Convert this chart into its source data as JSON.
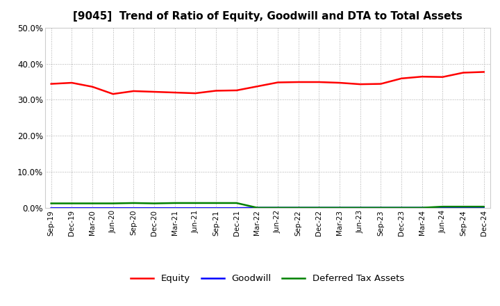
{
  "title": "[9045]  Trend of Ratio of Equity, Goodwill and DTA to Total Assets",
  "x_labels": [
    "Sep-19",
    "Dec-19",
    "Mar-20",
    "Jun-20",
    "Sep-20",
    "Dec-20",
    "Mar-21",
    "Jun-21",
    "Sep-21",
    "Dec-21",
    "Mar-22",
    "Jun-22",
    "Sep-22",
    "Dec-22",
    "Mar-23",
    "Jun-23",
    "Sep-23",
    "Dec-23",
    "Mar-24",
    "Jun-24",
    "Sep-24",
    "Dec-24"
  ],
  "equity": [
    0.344,
    0.347,
    0.336,
    0.316,
    0.324,
    0.322,
    0.32,
    0.318,
    0.325,
    0.326,
    0.337,
    0.348,
    0.349,
    0.349,
    0.347,
    0.343,
    0.344,
    0.359,
    0.364,
    0.363,
    0.375,
    0.377
  ],
  "goodwill": [
    0.0,
    0.0,
    0.0,
    0.0,
    0.0,
    0.0,
    0.0,
    0.0,
    0.0,
    0.0,
    0.001,
    0.001,
    0.001,
    0.001,
    0.001,
    0.001,
    0.001,
    0.001,
    0.001,
    0.0,
    0.0,
    0.0
  ],
  "dta": [
    0.013,
    0.013,
    0.013,
    0.013,
    0.014,
    0.013,
    0.014,
    0.014,
    0.014,
    0.014,
    0.001,
    0.001,
    0.001,
    0.001,
    0.001,
    0.001,
    0.001,
    0.001,
    0.001,
    0.004,
    0.004,
    0.004
  ],
  "equity_color": "#ff0000",
  "goodwill_color": "#0000ff",
  "dta_color": "#008000",
  "ylim": [
    0.0,
    0.5
  ],
  "yticks": [
    0.0,
    0.1,
    0.2,
    0.3,
    0.4,
    0.5
  ],
  "bg_color": "#ffffff",
  "grid_color": "#aaaaaa",
  "title_fontsize": 11,
  "legend_labels": [
    "Equity",
    "Goodwill",
    "Deferred Tax Assets"
  ]
}
